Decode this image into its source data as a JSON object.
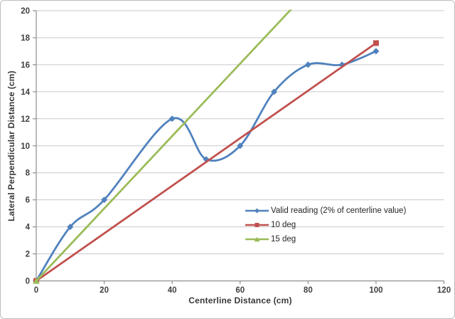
{
  "chart_data": {
    "type": "line",
    "title": "",
    "xlabel": "Centerline Distance (cm)",
    "ylabel": "Lateral Perpendicular Distance (cm)",
    "xlim": [
      0,
      120
    ],
    "ylim": [
      0,
      20
    ],
    "x_ticks": [
      0,
      20,
      40,
      60,
      80,
      100,
      120
    ],
    "y_ticks": [
      0,
      2,
      4,
      6,
      8,
      10,
      12,
      14,
      16,
      18,
      20
    ],
    "grid": "horizontal",
    "legend_position": "inside-right",
    "colors": {
      "gridline": "#c9c9c9",
      "axis": "#8e8e8e",
      "tick_label": "#3f3f3f",
      "frame_border": "#bdbdbd"
    },
    "series": [
      {
        "name": "Valid reading (2% of centerline value)",
        "color": "#4F81BD",
        "marker": "diamond",
        "smooth": true,
        "points": [
          [
            0,
            0
          ],
          [
            10,
            4
          ],
          [
            20,
            6
          ],
          [
            40,
            12
          ],
          [
            50,
            9
          ],
          [
            60,
            10
          ],
          [
            70,
            14
          ],
          [
            80,
            16
          ],
          [
            90,
            16
          ],
          [
            100,
            17
          ]
        ]
      },
      {
        "name": "10 deg",
        "color": "#C0504D",
        "marker": "square",
        "smooth": false,
        "points": [
          [
            0,
            0
          ],
          [
            100,
            17.6
          ]
        ]
      },
      {
        "name": "15 deg",
        "color": "#9BBB59",
        "marker": "triangle",
        "smooth": false,
        "points": [
          [
            0,
            0
          ],
          [
            100,
            26.8
          ]
        ]
      }
    ]
  }
}
